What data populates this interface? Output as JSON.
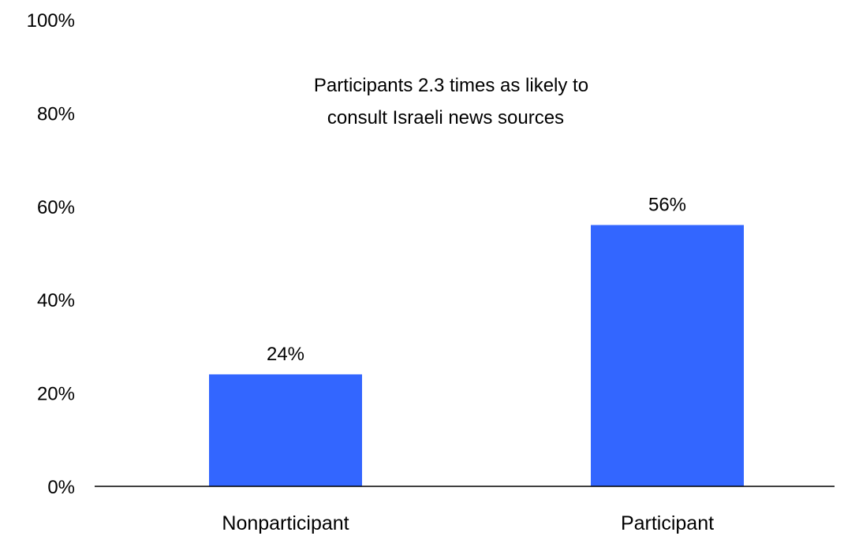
{
  "chart_data": {
    "type": "bar",
    "title": "",
    "xlabel": "",
    "ylabel": "",
    "categories": [
      "Nonparticipant",
      "Participant"
    ],
    "values": [
      24,
      56
    ],
    "data_labels": [
      "24%",
      "56%"
    ],
    "ylim": [
      0,
      100
    ],
    "yticks": [
      0,
      20,
      40,
      60,
      80,
      100
    ],
    "ytick_labels": [
      "0%",
      "20%",
      "40%",
      "60%",
      "80%",
      "100%"
    ],
    "annotation": [
      "Participants 2.3 times as likely to",
      "consult Israeli news sources"
    ],
    "bar_color": "#3366FF",
    "grid": false,
    "legend": "none"
  }
}
